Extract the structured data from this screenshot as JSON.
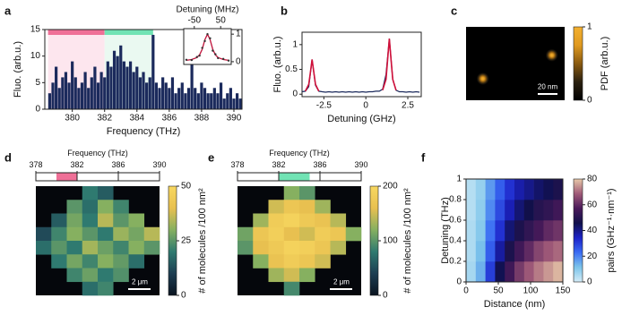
{
  "chart_data": [
    {
      "panel": "a",
      "type": "spectrum",
      "xlabel": "Frequency (THz)",
      "ylabel": "Fluo. (arb.u.)",
      "xlim": [
        378.3,
        390.5
      ],
      "ylim": [
        0,
        15
      ],
      "xticks": [
        380,
        382,
        384,
        386,
        388,
        390
      ],
      "yticks": [
        0,
        5,
        10,
        15
      ],
      "color": "#1b2a5c",
      "x": [
        378.6,
        378.8,
        379.0,
        379.2,
        379.4,
        379.6,
        379.8,
        380.0,
        380.2,
        380.4,
        380.6,
        380.8,
        381.0,
        381.2,
        381.4,
        381.6,
        381.8,
        382.0,
        382.2,
        382.4,
        382.6,
        382.8,
        383.0,
        383.2,
        383.4,
        383.6,
        383.8,
        384.0,
        384.2,
        384.4,
        384.6,
        384.8,
        385.0,
        385.2,
        385.4,
        385.6,
        385.8,
        386.0,
        386.2,
        386.4,
        386.6,
        386.8,
        387.0,
        387.2,
        387.4,
        387.6,
        387.8,
        388.0,
        388.2,
        388.4,
        388.6,
        388.8,
        389.0,
        389.2,
        389.4,
        389.6,
        389.8,
        390.0,
        390.2,
        390.4
      ],
      "values": [
        3,
        5,
        8,
        4,
        6,
        7,
        5,
        9,
        6,
        4,
        5,
        7,
        4,
        6,
        8,
        5,
        7,
        6,
        9,
        8,
        11,
        10,
        12,
        9,
        8,
        9,
        7,
        8,
        6,
        7,
        5,
        6,
        14,
        5,
        4,
        6,
        5,
        4,
        6,
        3,
        4,
        5,
        3,
        4,
        13,
        4,
        3,
        5,
        4,
        3,
        3,
        4,
        3,
        5,
        2,
        3,
        4,
        2,
        3,
        2
      ],
      "bands": [
        {
          "range": [
            378.5,
            382
          ],
          "color": "#ef7097",
          "shade": "#fde6ee"
        },
        {
          "range": [
            382,
            385
          ],
          "color": "#71e3b4",
          "shade": "#eaf9f1"
        }
      ],
      "inset": {
        "xlabel": "Detuning (MHz)",
        "xlim": [
          -90,
          90
        ],
        "ylim": [
          -0.1,
          1.2
        ],
        "xticks": [
          -50,
          50
        ],
        "yticks": [
          0,
          1
        ],
        "x": [
          -80,
          -60,
          -40,
          -30,
          -20,
          -10,
          0,
          10,
          20,
          30,
          40,
          60,
          80
        ],
        "series": [
          {
            "color": "#c0143c",
            "style": "line",
            "values": [
              0.05,
              0.08,
              0.15,
              0.25,
              0.45,
              0.8,
              1,
              0.8,
              0.45,
              0.25,
              0.15,
              0.08,
              0.05
            ]
          },
          {
            "color": "#333333",
            "style": "dots",
            "values": [
              0.07,
              0.06,
              0.17,
              0.22,
              0.5,
              0.75,
              1,
              0.85,
              0.4,
              0.27,
              0.13,
              0.1,
              0.04
            ]
          }
        ]
      }
    },
    {
      "panel": "b",
      "type": "line",
      "xlabel": "Detuning (GHz)",
      "ylabel": "Fluo. (arb.u.)",
      "xlim": [
        -3.8,
        3.3
      ],
      "ylim": [
        -0.05,
        1.25
      ],
      "xticks": [
        -2.5,
        0,
        2.5
      ],
      "yticks": [
        0,
        0.5,
        1
      ],
      "series": [
        {
          "color": "#1b2a5c",
          "x": [
            -3.8,
            -3.6,
            -3.4,
            -3.2,
            -3.0,
            -2.8,
            -2.6,
            -2.4,
            -2.2,
            -2.0,
            -1.8,
            -1.6,
            -1.4,
            -1.2,
            -1.0,
            -0.8,
            -0.6,
            -0.4,
            -0.2,
            0,
            0.2,
            0.4,
            0.6,
            0.8,
            1.0,
            1.2,
            1.4,
            1.6,
            1.8,
            2.0,
            2.2,
            2.4,
            2.6,
            2.8,
            3.0,
            3.2
          ],
          "values": [
            0.05,
            0.06,
            0.15,
            0.7,
            0.18,
            0.06,
            0.05,
            0.04,
            0.05,
            0.04,
            0.05,
            0.04,
            0.05,
            0.04,
            0.05,
            0.04,
            0.05,
            0.04,
            0.05,
            0.04,
            0.05,
            0.05,
            0.06,
            0.06,
            0.1,
            0.4,
            1.12,
            0.3,
            0.08,
            0.05,
            0.05,
            0.04,
            0.05,
            0.04,
            0.05,
            0.04
          ]
        },
        {
          "color": "#d0103a",
          "x": [
            -3.6,
            -3.4,
            -3.3,
            -3.2,
            -3.1,
            -3.0,
            -2.8
          ],
          "values": [
            0.06,
            0.2,
            0.45,
            0.7,
            0.45,
            0.2,
            0.06
          ]
        },
        {
          "color": "#d0103a",
          "x": [
            1.0,
            1.2,
            1.3,
            1.4,
            1.5,
            1.6,
            1.8
          ],
          "values": [
            0.08,
            0.3,
            0.7,
            1.12,
            0.7,
            0.3,
            0.08
          ]
        }
      ]
    },
    {
      "panel": "c",
      "type": "spots",
      "xlim": [
        0,
        100
      ],
      "ylim": [
        0,
        75
      ],
      "x": [
        17,
        87
      ],
      "y": [
        22,
        46
      ],
      "colormap": [
        "#000000",
        "#2a2010",
        "#8a5a10",
        "#e09a20",
        "#f3b030"
      ],
      "clabel": "PDF (arb.u.)",
      "clim": [
        0,
        1
      ],
      "cticks": [
        0,
        1
      ],
      "scalebar": {
        "length": 20,
        "label": "20 nm"
      }
    },
    {
      "panel": "d",
      "type": "map",
      "freq": {
        "label": "Frequency (THz)",
        "xlim": [
          378,
          390
        ],
        "xticks": [
          378,
          382,
          386,
          390
        ],
        "range": [
          380,
          382
        ],
        "color": "#ef7097"
      },
      "z": [
        [
          null,
          null,
          null,
          20,
          15,
          null,
          null,
          null
        ],
        [
          null,
          null,
          25,
          18,
          30,
          22,
          null,
          null
        ],
        [
          null,
          15,
          28,
          20,
          35,
          25,
          30,
          null
        ],
        [
          12,
          22,
          30,
          25,
          20,
          32,
          28,
          35
        ],
        [
          18,
          25,
          20,
          33,
          27,
          22,
          30,
          25
        ],
        [
          null,
          20,
          28,
          22,
          30,
          26,
          18,
          null
        ],
        [
          null,
          null,
          22,
          27,
          20,
          24,
          null,
          null
        ],
        [
          null,
          null,
          null,
          18,
          22,
          null,
          null,
          null
        ]
      ],
      "colormap": [
        "#0a1420",
        "#1d3e52",
        "#2f7a70",
        "#86b060",
        "#e8c050",
        "#f8d860"
      ],
      "clabel": "# of molecules /100 nm²",
      "clim": [
        0,
        50
      ],
      "cticks": [
        0,
        25,
        50
      ],
      "scalebar": {
        "label": "2 μm"
      }
    },
    {
      "panel": "e",
      "type": "map",
      "freq": {
        "label": "Frequency (THz)",
        "xlim": [
          378,
          390
        ],
        "xticks": [
          378,
          382,
          386,
          390
        ],
        "range": [
          382,
          385
        ],
        "color": "#71e3b4"
      },
      "z": [
        [
          null,
          null,
          null,
          120,
          100,
          null,
          null,
          null
        ],
        [
          null,
          null,
          150,
          170,
          160,
          130,
          null,
          null
        ],
        [
          null,
          130,
          180,
          190,
          175,
          165,
          140,
          null
        ],
        [
          110,
          170,
          185,
          160,
          150,
          180,
          170,
          120
        ],
        [
          100,
          160,
          175,
          190,
          185,
          170,
          140,
          null
        ],
        [
          null,
          120,
          165,
          180,
          170,
          150,
          null,
          null
        ],
        [
          null,
          null,
          130,
          150,
          120,
          null,
          null,
          null
        ],
        [
          null,
          null,
          null,
          90,
          null,
          null,
          null,
          null
        ]
      ],
      "colormap": [
        "#0a1420",
        "#1d3e52",
        "#2f7a70",
        "#86b060",
        "#e8c050",
        "#f8d860"
      ],
      "clabel": "# of molecules /100 nm²",
      "clim": [
        0,
        200
      ],
      "cticks": [
        0,
        100,
        200
      ],
      "scalebar": {
        "label": "2 μm"
      }
    },
    {
      "panel": "f",
      "type": "heatmap",
      "xlabel": "Distance (nm)",
      "ylabel": "Detuning (THz)",
      "xlim": [
        0,
        150
      ],
      "ylim": [
        0,
        1
      ],
      "xticks": [
        0,
        50,
        100,
        150
      ],
      "yticks": [
        0,
        0.2,
        0.4,
        0.6,
        0.8,
        1
      ],
      "xbins": [
        0,
        15,
        30,
        45,
        60,
        75,
        90,
        105,
        120,
        135,
        150
      ],
      "ybins": [
        0,
        0.2,
        0.4,
        0.6,
        0.8,
        1
      ],
      "z": [
        [
          6,
          14,
          30,
          45,
          55,
          63,
          68,
          72,
          75,
          78
        ],
        [
          5,
          12,
          25,
          38,
          48,
          55,
          60,
          65,
          68,
          70
        ],
        [
          5,
          10,
          22,
          32,
          42,
          48,
          52,
          56,
          60,
          62
        ],
        [
          4,
          9,
          19,
          28,
          36,
          42,
          46,
          50,
          52,
          55
        ],
        [
          4,
          8,
          17,
          25,
          32,
          37,
          40,
          43,
          45,
          48
        ]
      ],
      "colormap": [
        "#d4ecf7",
        "#7cc4ea",
        "#3a6cf4",
        "#1c22c8",
        "#10104a",
        "#4a1a5a",
        "#a05a78",
        "#e8c8a8"
      ],
      "clabel": "pairs (GHz⁻¹·nm⁻¹)",
      "clim": [
        0,
        80
      ],
      "cticks": [
        0,
        20,
        40,
        60,
        80
      ]
    }
  ]
}
